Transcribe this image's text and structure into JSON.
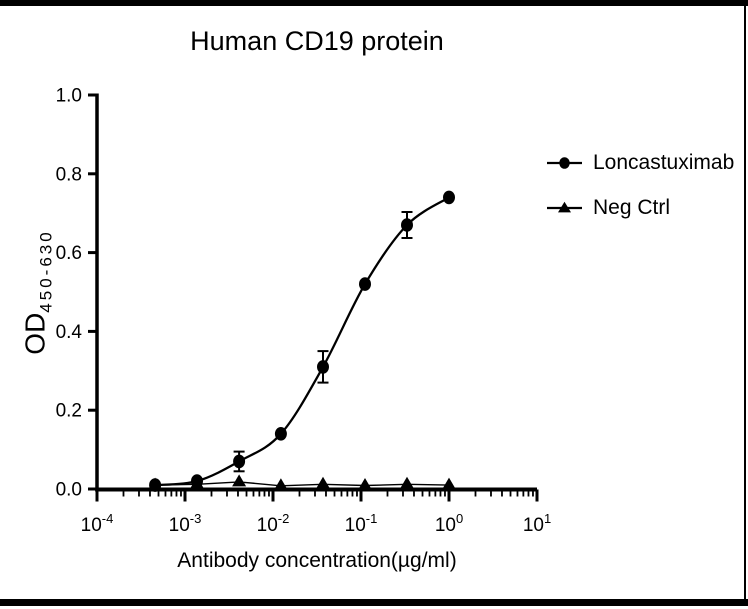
{
  "frame": {
    "background": "#ffffff",
    "border_color": "#000000"
  },
  "chart_data": {
    "type": "scatter",
    "title": "Human CD19 protein",
    "xlabel": "Antibody concentration(µg/ml)",
    "ylabel": {
      "main": "OD",
      "subscript": "450-630"
    },
    "x_scale": "log10",
    "x_range_exponents": [
      -4,
      1
    ],
    "x_tick_exponents": [
      -4,
      -3,
      -2,
      -1,
      0,
      1
    ],
    "y_range": [
      0.0,
      1.0
    ],
    "y_ticks": [
      0.0,
      0.2,
      0.4,
      0.6,
      0.8,
      1.0
    ],
    "grid": false,
    "legend_position": "right",
    "axis_color": "#000000",
    "series": [
      {
        "name": "Loncastuximab",
        "marker": "circle",
        "color": "#000000",
        "smooth": true,
        "x": [
          0.000457,
          0.00137,
          0.00412,
          0.0123,
          0.037,
          0.111,
          0.333,
          1.0
        ],
        "y": [
          0.01,
          0.02,
          0.07,
          0.14,
          0.31,
          0.52,
          0.67,
          0.74
        ],
        "yerr": [
          0,
          0,
          0.025,
          0,
          0.04,
          0,
          0.033,
          0
        ]
      },
      {
        "name": "Neg Ctrl",
        "marker": "triangle",
        "color": "#000000",
        "smooth": false,
        "x": [
          0.000457,
          0.00137,
          0.00412,
          0.0123,
          0.037,
          0.111,
          0.333,
          1.0
        ],
        "y": [
          0.01,
          0.012,
          0.018,
          0.008,
          0.012,
          0.009,
          0.012,
          0.01
        ],
        "yerr": [
          0,
          0,
          0,
          0,
          0,
          0,
          0,
          0
        ]
      }
    ]
  }
}
